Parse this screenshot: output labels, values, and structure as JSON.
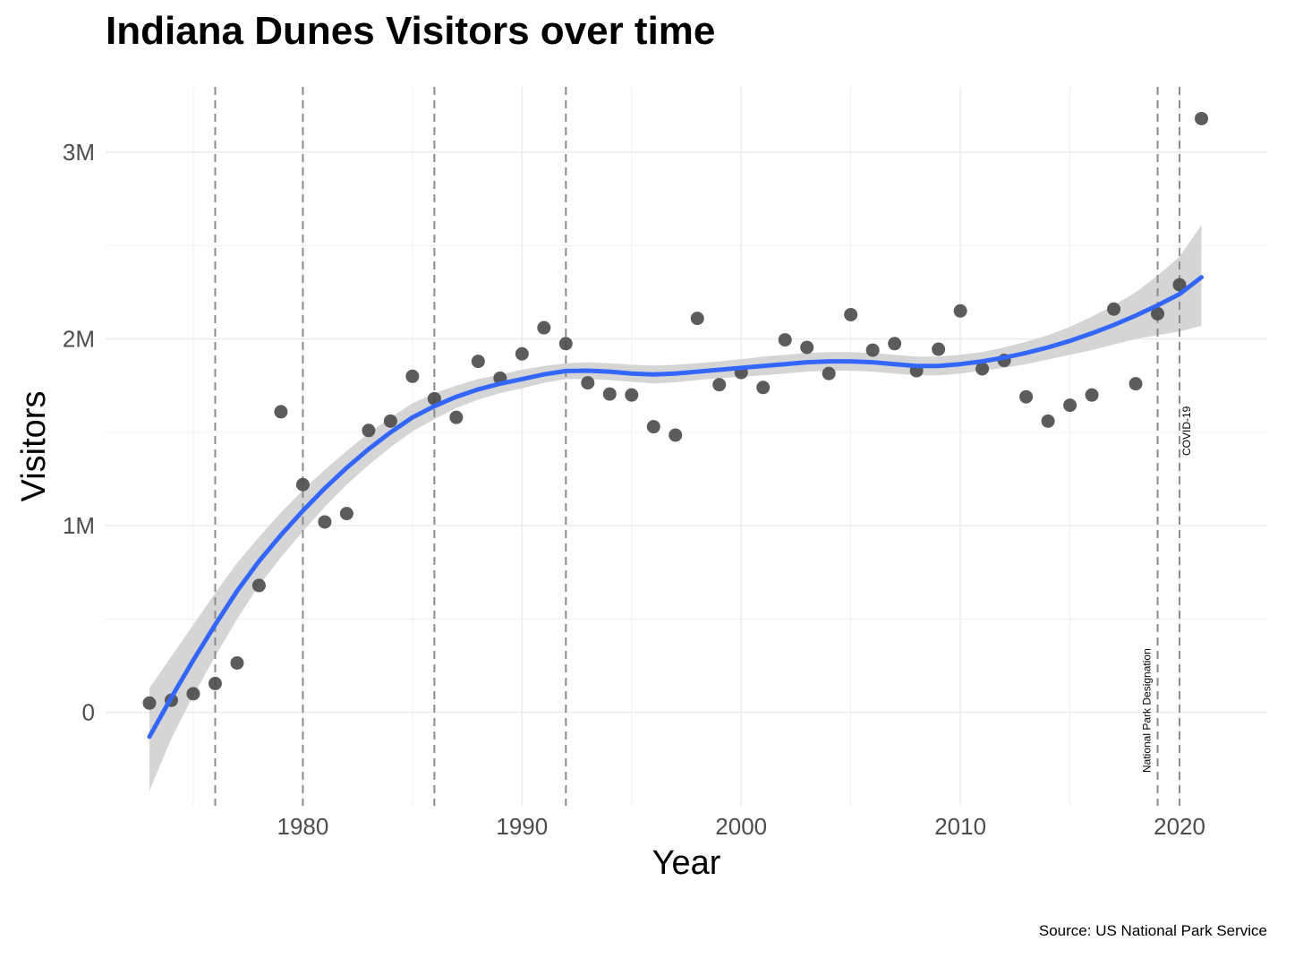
{
  "title": "Indiana Dunes Visitors over time",
  "caption": "Source: US National Park Service",
  "colors": {
    "point": "#4a4a4a",
    "smooth_line": "#3366ff",
    "ribbon": "#d3d3d3",
    "vline": "#8c8c8c",
    "grid": "#ebebeb"
  },
  "chart_data": {
    "type": "scatter",
    "title": "Indiana Dunes Visitors over time",
    "xlabel": "Year",
    "ylabel": "Visitors",
    "xlim": [
      1971,
      2024
    ],
    "ylim": [
      -500000,
      3350000
    ],
    "x_ticks": [
      1980,
      1990,
      2000,
      2010,
      2020
    ],
    "x_tick_labels": [
      "1980",
      "1990",
      "2000",
      "2010",
      "2020"
    ],
    "y_ticks": [
      0,
      1000000,
      2000000,
      3000000
    ],
    "y_tick_labels": [
      "0",
      "1M",
      "2M",
      "3M"
    ],
    "grid": true,
    "points": {
      "x": [
        1973,
        1974,
        1975,
        1976,
        1977,
        1978,
        1979,
        1980,
        1981,
        1982,
        1983,
        1984,
        1985,
        1986,
        1987,
        1988,
        1989,
        1990,
        1991,
        1992,
        1993,
        1994,
        1995,
        1996,
        1997,
        1998,
        1999,
        2000,
        2001,
        2002,
        2003,
        2004,
        2005,
        2006,
        2007,
        2008,
        2009,
        2010,
        2011,
        2012,
        2013,
        2014,
        2015,
        2016,
        2017,
        2018,
        2019,
        2020,
        2021
      ],
      "y": [
        50000,
        65000,
        100000,
        155000,
        265000,
        680000,
        1610000,
        1220000,
        1020000,
        1065000,
        1510000,
        1560000,
        1800000,
        1680000,
        1580000,
        1880000,
        1790000,
        1920000,
        2060000,
        1975000,
        1765000,
        1705000,
        1700000,
        1530000,
        1485000,
        2110000,
        1755000,
        1820000,
        1740000,
        1995000,
        1955000,
        1815000,
        2130000,
        1940000,
        1975000,
        1830000,
        1945000,
        2150000,
        1840000,
        1885000,
        1690000,
        1560000,
        1645000,
        1700000,
        2160000,
        1760000,
        2135000,
        2290000,
        3180000
      ]
    },
    "smooth": {
      "x": [
        1973,
        1974,
        1975,
        1976,
        1977,
        1978,
        1979,
        1980,
        1981,
        1982,
        1983,
        1984,
        1985,
        1986,
        1987,
        1988,
        1989,
        1990,
        1991,
        1992,
        1993,
        1994,
        1995,
        1996,
        1997,
        1998,
        1999,
        2000,
        2001,
        2002,
        2003,
        2004,
        2005,
        2006,
        2007,
        2008,
        2009,
        2010,
        2011,
        2012,
        2013,
        2014,
        2015,
        2016,
        2017,
        2018,
        2019,
        2020,
        2021
      ],
      "y": [
        -130000,
        80000,
        280000,
        470000,
        650000,
        810000,
        950000,
        1080000,
        1200000,
        1310000,
        1410000,
        1500000,
        1580000,
        1640000,
        1690000,
        1730000,
        1760000,
        1785000,
        1810000,
        1828000,
        1830000,
        1825000,
        1815000,
        1810000,
        1815000,
        1825000,
        1835000,
        1845000,
        1855000,
        1865000,
        1875000,
        1880000,
        1880000,
        1875000,
        1865000,
        1855000,
        1855000,
        1865000,
        1880000,
        1900000,
        1925000,
        1955000,
        1990000,
        2030000,
        2075000,
        2125000,
        2180000,
        2240000,
        2330000
      ]
    },
    "ribbon_upper": [
      130000,
      300000,
      470000,
      640000,
      800000,
      940000,
      1070000,
      1190000,
      1300000,
      1400000,
      1495000,
      1580000,
      1655000,
      1710000,
      1750000,
      1785000,
      1810000,
      1835000,
      1855000,
      1870000,
      1875000,
      1870000,
      1862000,
      1858000,
      1862000,
      1870000,
      1880000,
      1892000,
      1905000,
      1915000,
      1925000,
      1930000,
      1930000,
      1925000,
      1915000,
      1905000,
      1905000,
      1915000,
      1930000,
      1955000,
      1985000,
      2020000,
      2065000,
      2120000,
      2180000,
      2250000,
      2340000,
      2440000,
      2610000
    ],
    "ribbon_lower": [
      -420000,
      -140000,
      90000,
      300000,
      500000,
      680000,
      830000,
      970000,
      1100000,
      1220000,
      1325000,
      1420000,
      1505000,
      1570000,
      1630000,
      1675000,
      1710000,
      1735000,
      1765000,
      1785000,
      1785000,
      1780000,
      1770000,
      1762000,
      1768000,
      1780000,
      1790000,
      1798000,
      1805000,
      1815000,
      1825000,
      1830000,
      1830000,
      1825000,
      1815000,
      1805000,
      1805000,
      1815000,
      1830000,
      1845000,
      1865000,
      1890000,
      1915000,
      1940000,
      1970000,
      2000000,
      2020000,
      2040000,
      2070000
    ]
  },
  "events": [
    {
      "year": 1976,
      "label": ""
    },
    {
      "year": 1980,
      "label": ""
    },
    {
      "year": 1986,
      "label": ""
    },
    {
      "year": 1992,
      "label": ""
    },
    {
      "year": 2019,
      "label": "National Park Designation"
    },
    {
      "year": 2020,
      "label": "COVID-19"
    }
  ]
}
